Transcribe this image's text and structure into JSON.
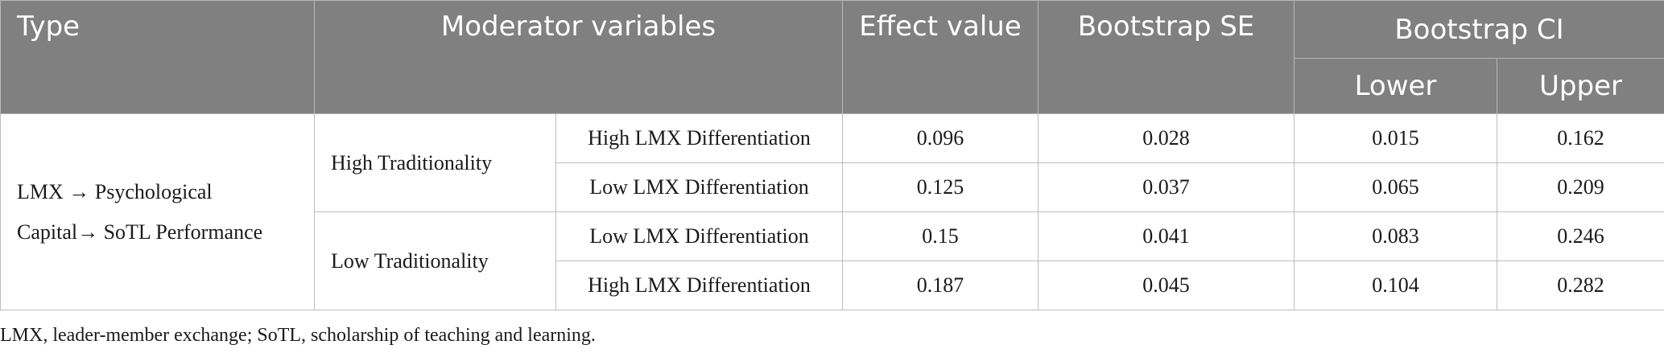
{
  "table": {
    "headers": {
      "type": "Type",
      "moderator": "Moderator variables",
      "effect": "Effect value",
      "se": "Bootstrap SE",
      "ci": "Bootstrap CI",
      "lower": "Lower",
      "upper": "Upper"
    },
    "type_label_line1": "LMX → Psychological",
    "type_label_line2": "Capital→ SoTL Performance",
    "groups": [
      {
        "traditionality": "High Traditionality",
        "rows": [
          {
            "differentiation": "High LMX Differentiation",
            "effect": "0.096",
            "se": "0.028",
            "lower": "0.015",
            "upper": "0.162"
          },
          {
            "differentiation": "Low LMX Differentiation",
            "effect": "0.125",
            "se": "0.037",
            "lower": "0.065",
            "upper": "0.209"
          }
        ]
      },
      {
        "traditionality": "Low Traditionality",
        "rows": [
          {
            "differentiation": "Low LMX Differentiation",
            "effect": "0.15",
            "se": "0.041",
            "lower": "0.083",
            "upper": "0.246"
          },
          {
            "differentiation": "High LMX Differentiation",
            "effect": "0.187",
            "se": "0.045",
            "lower": "0.104",
            "upper": "0.282"
          }
        ]
      }
    ]
  },
  "footnote": "LMX, leader-member exchange; SoTL, scholarship of teaching and learning."
}
